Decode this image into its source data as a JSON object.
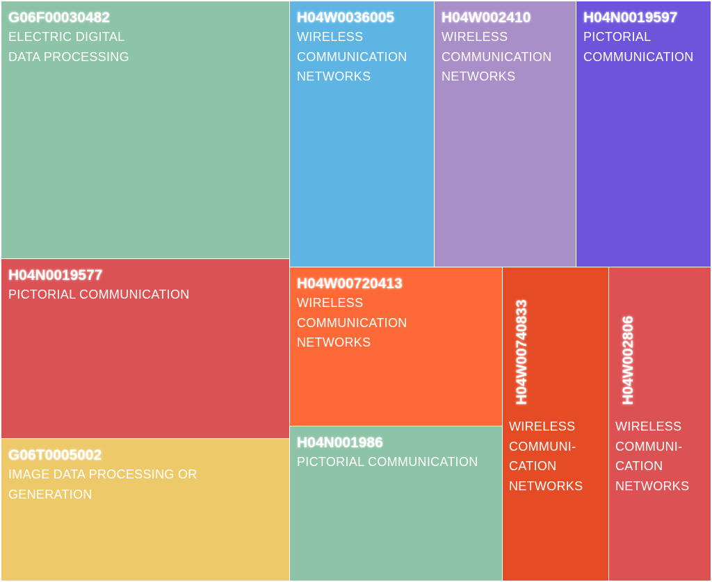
{
  "tiles": [
    {
      "code": "G06F00030482",
      "label": "ELECTRIC DIGITAL DATA PROCESSING"
    },
    {
      "code": "H04N0019577",
      "label": "PICTORIAL COMMUNICATION"
    },
    {
      "code": "G06T0005002",
      "label": "IMAGE DATA PROCESSING OR GENERATION"
    },
    {
      "code": "H04W0036005",
      "label": "WIRELESS COMMUNICATION NETWORKS"
    },
    {
      "code": "H04W002410",
      "label": "WIRELESS COMMUNICATION NETWORKS"
    },
    {
      "code": "H04N0019597",
      "label": "PICTORIAL COMMUNICATION"
    },
    {
      "code": "H04W00720413",
      "label": "WIRELESS COMMUNICATION NETWORKS"
    },
    {
      "code": "H04N001986",
      "label": "PICTORIAL COMMUNICATION"
    },
    {
      "code": "H04W00740833",
      "label": "WIRELESS COMMUNI-CATION NETWORKS"
    },
    {
      "code": "H04W002806",
      "label": "WIRELESS COMMUNI-CATION NETWORKS"
    }
  ]
}
